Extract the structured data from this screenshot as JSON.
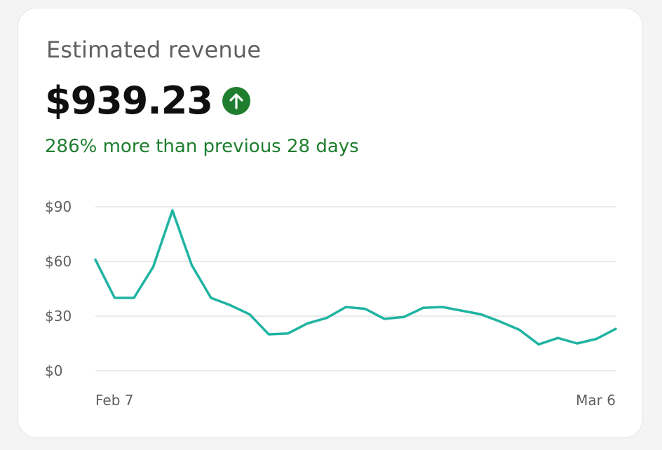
{
  "card": {
    "label": "Estimated revenue",
    "value": "$939.23",
    "trend_icon": "arrow-up-icon",
    "comparison": "286% more than previous 28 days"
  },
  "colors": {
    "trend_green": "#1e7e2e",
    "line": "#1fb3a2",
    "grid": "#e3e3e3"
  },
  "chart_data": {
    "type": "line",
    "title": "",
    "xlabel": "",
    "ylabel": "",
    "ylim": [
      0,
      90
    ],
    "yticks": [
      {
        "value": 0,
        "label": "$0"
      },
      {
        "value": 30,
        "label": "$30"
      },
      {
        "value": 60,
        "label": "$60"
      },
      {
        "value": 90,
        "label": "$90"
      }
    ],
    "xticks": [
      {
        "index": 0,
        "label": "Feb 7"
      },
      {
        "index": 27,
        "label": "Mar 6"
      }
    ],
    "grid": true,
    "legend": "none",
    "series": [
      {
        "values": [
          61,
          40,
          40,
          57,
          88,
          58,
          40,
          36,
          31,
          20,
          20.5,
          26,
          29,
          35,
          34,
          28.5,
          29.5,
          34.5,
          35,
          33,
          31,
          27,
          22.5,
          14.5,
          18,
          15,
          17.5,
          23
        ]
      }
    ]
  }
}
